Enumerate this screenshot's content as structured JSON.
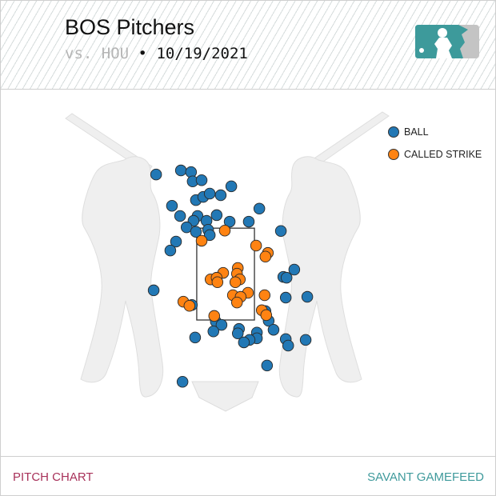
{
  "header": {
    "title": "BOS Pitchers",
    "opponent": "vs. HOU",
    "separator": "•",
    "date": "10/19/2021",
    "logo": "mlb-logo"
  },
  "footer": {
    "left": "PITCH CHART",
    "right": "SAVANT GAMEFEED"
  },
  "colors": {
    "ball": "#2278b5",
    "called_strike": "#ff8312",
    "logo": "#3d9a9b",
    "footer_left": "#a8325a",
    "footer_right": "#3f9a9c"
  },
  "chart_data": {
    "type": "scatter",
    "legend_placement": "top-right",
    "units": "feet (catcher's view)",
    "strike_zone": {
      "x": [
        -0.71,
        0.71
      ],
      "z": [
        1.5,
        3.76
      ]
    },
    "series": [
      {
        "name": "BALL",
        "color": "#2278b5",
        "points": [
          [
            -1.71,
            5.08
          ],
          [
            -1.1,
            5.18
          ],
          [
            -0.85,
            5.14
          ],
          [
            -0.81,
            4.91
          ],
          [
            -0.59,
            4.94
          ],
          [
            0.14,
            4.79
          ],
          [
            -0.73,
            4.45
          ],
          [
            -0.55,
            4.53
          ],
          [
            -0.39,
            4.61
          ],
          [
            -0.12,
            4.57
          ],
          [
            -1.32,
            4.31
          ],
          [
            0.83,
            4.24
          ],
          [
            -1.12,
            4.06
          ],
          [
            -0.69,
            4.06
          ],
          [
            -0.79,
            3.94
          ],
          [
            -0.47,
            3.94
          ],
          [
            -0.22,
            4.08
          ],
          [
            0.1,
            3.92
          ],
          [
            0.57,
            3.92
          ],
          [
            -0.96,
            3.78
          ],
          [
            -0.73,
            3.67
          ],
          [
            -0.43,
            3.72
          ],
          [
            -0.39,
            3.59
          ],
          [
            1.36,
            3.69
          ],
          [
            -1.22,
            3.43
          ],
          [
            -1.36,
            3.21
          ],
          [
            1.69,
            2.74
          ],
          [
            1.42,
            2.56
          ],
          [
            1.5,
            2.54
          ],
          [
            -1.77,
            2.23
          ],
          [
            -0.83,
            1.87
          ],
          [
            1.48,
            2.05
          ],
          [
            2.01,
            2.07
          ],
          [
            0.98,
            1.72
          ],
          [
            1.06,
            1.48
          ],
          [
            -0.24,
            1.46
          ],
          [
            -0.1,
            1.38
          ],
          [
            -0.3,
            1.22
          ],
          [
            0.33,
            1.28
          ],
          [
            0.3,
            1.17
          ],
          [
            0.77,
            1.19
          ],
          [
            1.18,
            1.26
          ],
          [
            0.77,
            1.05
          ],
          [
            0.59,
            1.01
          ],
          [
            0.45,
            0.95
          ],
          [
            -0.75,
            1.07
          ],
          [
            1.48,
            1.03
          ],
          [
            1.54,
            0.87
          ],
          [
            1.97,
            1.01
          ],
          [
            1.02,
            0.38
          ],
          [
            -1.06,
            -0.02
          ]
        ]
      },
      {
        "name": "CALLED STRIKE",
        "color": "#ff8312",
        "points": [
          [
            -0.02,
            3.7
          ],
          [
            -0.59,
            3.45
          ],
          [
            0.75,
            3.33
          ],
          [
            1.04,
            3.15
          ],
          [
            0.98,
            3.06
          ],
          [
            0.3,
            2.78
          ],
          [
            0.28,
            2.64
          ],
          [
            -0.06,
            2.66
          ],
          [
            -0.37,
            2.5
          ],
          [
            -0.22,
            2.54
          ],
          [
            -0.2,
            2.43
          ],
          [
            0.35,
            2.5
          ],
          [
            0.24,
            2.43
          ],
          [
            0.55,
            2.17
          ],
          [
            0.18,
            2.11
          ],
          [
            0.37,
            2.07
          ],
          [
            0.28,
            1.93
          ],
          [
            0.96,
            2.11
          ],
          [
            -1.04,
            1.95
          ],
          [
            -0.89,
            1.85
          ],
          [
            -0.28,
            1.6
          ],
          [
            0.89,
            1.74
          ],
          [
            1.0,
            1.62
          ]
        ]
      }
    ]
  }
}
